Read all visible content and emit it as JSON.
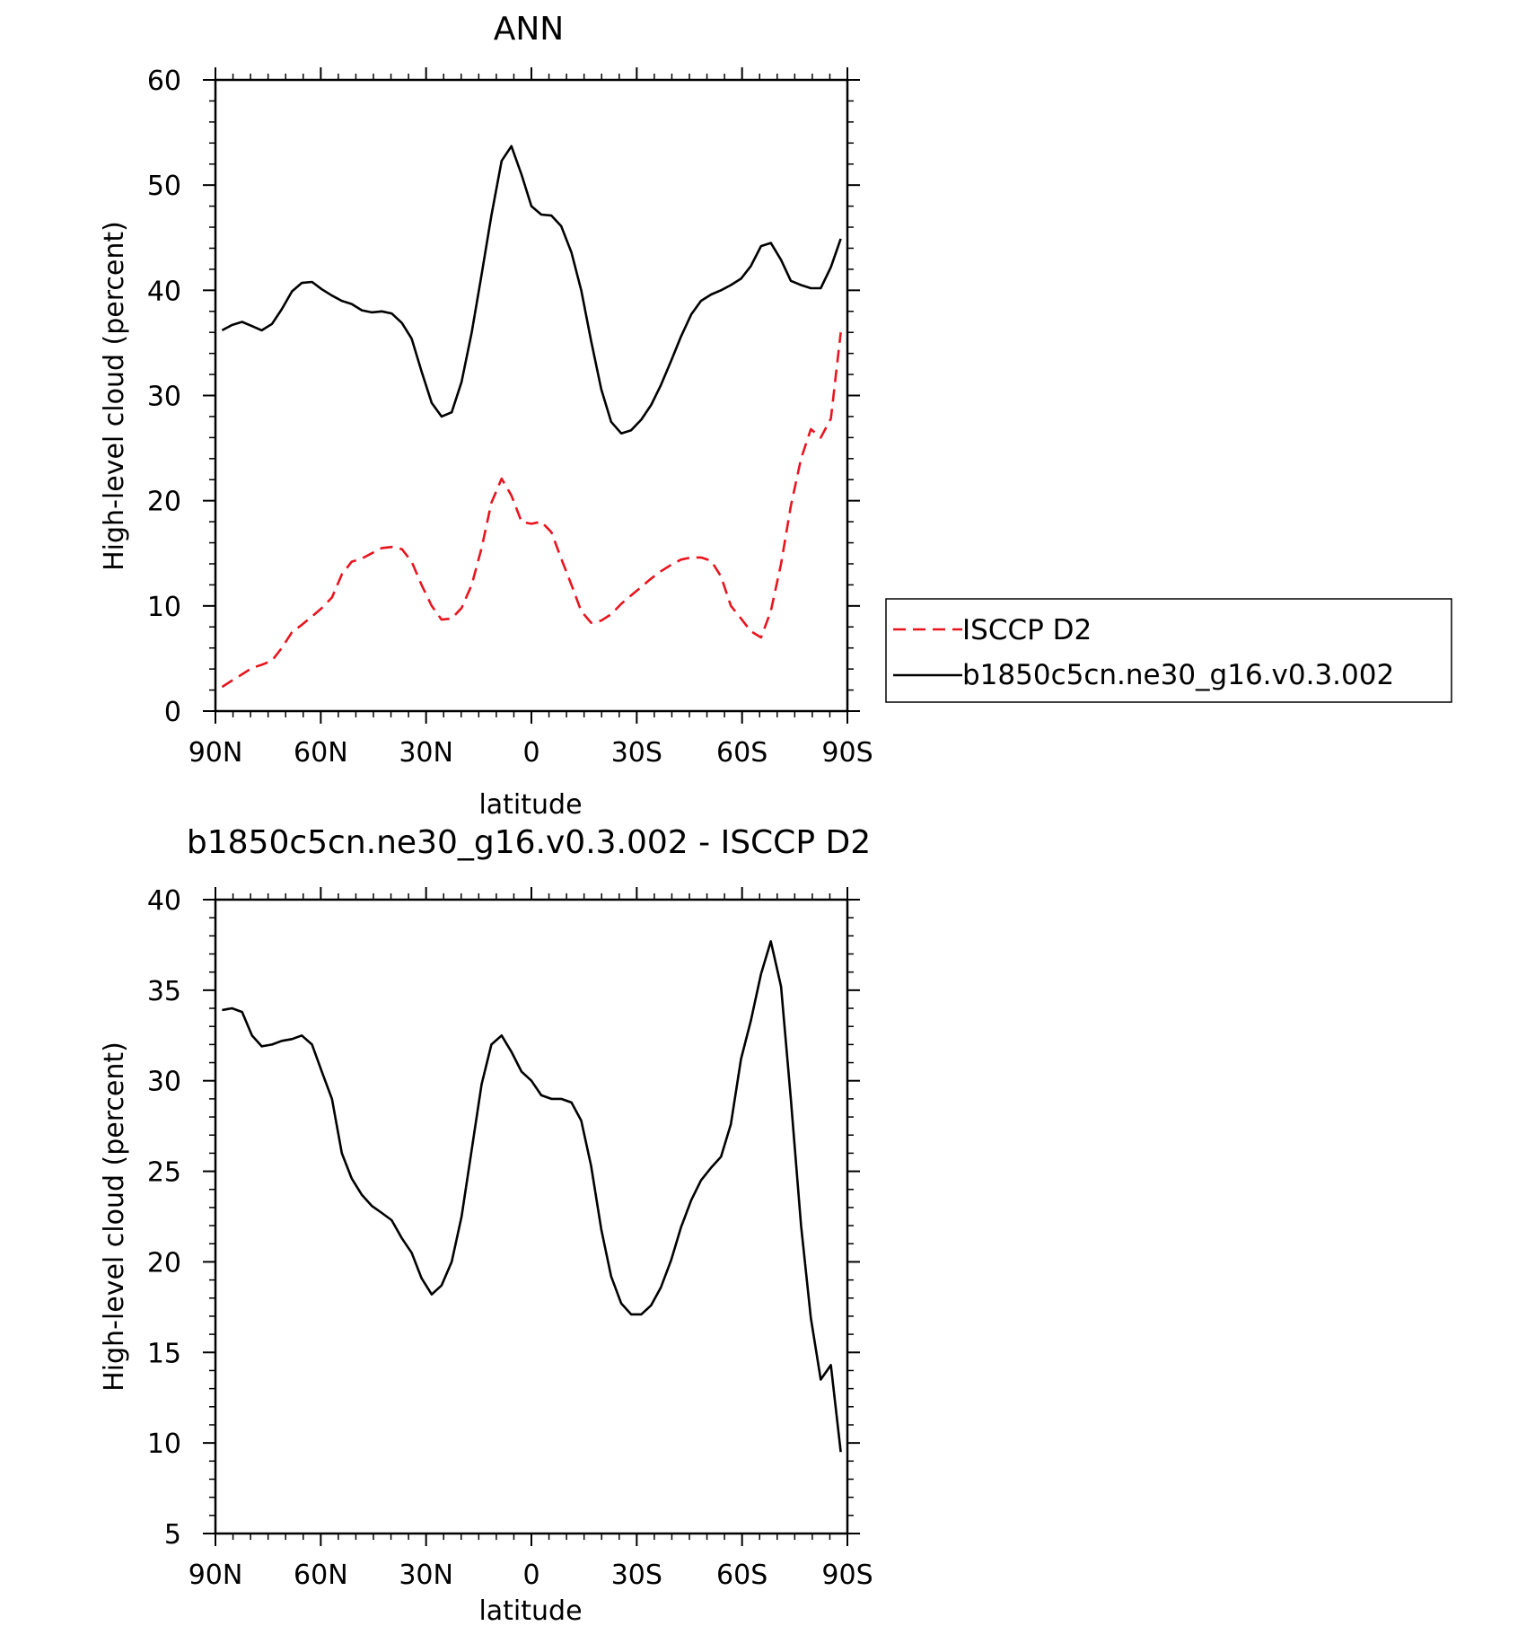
{
  "chart_data": [
    {
      "type": "line",
      "title": "ANN",
      "xlabel": "latitude",
      "ylabel": "High-level cloud (percent)",
      "xlim": [
        90,
        -90
      ],
      "ylim": [
        0,
        60
      ],
      "x_ticks": [
        {
          "value": 90,
          "label": "90N"
        },
        {
          "value": 60,
          "label": "60N"
        },
        {
          "value": 30,
          "label": "30N"
        },
        {
          "value": 0,
          "label": "0"
        },
        {
          "value": -30,
          "label": "30S"
        },
        {
          "value": -60,
          "label": "60S"
        },
        {
          "value": -90,
          "label": "90S"
        }
      ],
      "y_ticks": [
        0,
        10,
        20,
        30,
        40,
        50,
        60
      ],
      "legend": "right",
      "grid": false,
      "x": [
        88.1,
        85.3,
        82.4,
        79.6,
        76.8,
        73.9,
        71.1,
        68.2,
        65.4,
        62.5,
        59.7,
        56.8,
        54.0,
        51.2,
        48.3,
        45.5,
        42.6,
        39.8,
        36.9,
        34.1,
        31.3,
        28.4,
        25.6,
        22.7,
        19.9,
        17.0,
        14.2,
        11.4,
        8.5,
        5.7,
        2.8,
        0.0,
        -2.8,
        -5.7,
        -8.5,
        -11.4,
        -14.2,
        -17.0,
        -19.9,
        -22.7,
        -25.6,
        -28.4,
        -31.3,
        -34.1,
        -36.9,
        -39.8,
        -42.6,
        -45.5,
        -48.3,
        -51.2,
        -54.0,
        -56.8,
        -59.7,
        -62.5,
        -65.4,
        -68.2,
        -71.1,
        -73.9,
        -76.8,
        -79.6,
        -82.4,
        -85.3,
        -88.1
      ],
      "series": [
        {
          "name": "ISCCP D2",
          "color": "#e8141e",
          "dash": "dashed",
          "values": [
            2.3,
            2.9,
            3.5,
            4.1,
            4.4,
            4.8,
            6.0,
            7.5,
            8.2,
            9.0,
            9.8,
            10.8,
            13.0,
            14.2,
            14.5,
            15.0,
            15.5,
            15.6,
            15.4,
            14.2,
            12.0,
            10.0,
            8.7,
            8.8,
            9.8,
            12.0,
            15.5,
            19.8,
            22.1,
            20.5,
            18.0,
            17.8,
            18.0,
            17.0,
            14.5,
            12.0,
            9.5,
            8.4,
            8.6,
            9.2,
            10.2,
            11.0,
            11.8,
            12.6,
            13.3,
            13.9,
            14.4,
            14.6,
            14.6,
            14.3,
            12.8,
            10.0,
            8.8,
            7.6,
            7.0,
            9.5,
            14.0,
            19.5,
            24.0,
            26.8,
            26.0,
            27.8,
            36.0
          ]
        },
        {
          "name": "b1850c5cn.ne30_g16.v0.3.002",
          "color": "#000000",
          "dash": "solid",
          "values": [
            36.2,
            36.7,
            37.0,
            36.6,
            36.2,
            36.8,
            38.2,
            39.9,
            40.7,
            40.8,
            40.1,
            39.5,
            39.0,
            38.7,
            38.1,
            37.9,
            38.0,
            37.8,
            36.9,
            35.4,
            32.3,
            29.3,
            28.0,
            28.4,
            31.3,
            36.0,
            41.5,
            47.1,
            52.3,
            53.7,
            51.0,
            48.0,
            47.2,
            47.1,
            46.1,
            43.6,
            40.0,
            35.2,
            30.6,
            27.5,
            26.4,
            26.7,
            27.7,
            29.1,
            31.0,
            33.3,
            35.6,
            37.7,
            39.0,
            39.6,
            40.0,
            40.5,
            41.1,
            42.3,
            44.2,
            44.5,
            42.9,
            40.9,
            40.5,
            40.2,
            40.2,
            42.2,
            44.9
          ]
        }
      ]
    },
    {
      "type": "line",
      "title": "b1850c5cn.ne30_g16.v0.3.002 - ISCCP D2",
      "xlabel": "latitude",
      "ylabel": "High-level cloud (percent)",
      "xlim": [
        90,
        -90
      ],
      "ylim": [
        5,
        40
      ],
      "x_ticks": [
        {
          "value": 90,
          "label": "90N"
        },
        {
          "value": 60,
          "label": "60N"
        },
        {
          "value": 30,
          "label": "30N"
        },
        {
          "value": 0,
          "label": "0"
        },
        {
          "value": -30,
          "label": "30S"
        },
        {
          "value": -60,
          "label": "60S"
        },
        {
          "value": -90,
          "label": "90S"
        }
      ],
      "y_ticks": [
        5,
        10,
        15,
        20,
        25,
        30,
        35,
        40
      ],
      "grid": false,
      "x": [
        88.1,
        85.3,
        82.4,
        79.6,
        76.8,
        73.9,
        71.1,
        68.2,
        65.4,
        62.5,
        59.7,
        56.8,
        54.0,
        51.2,
        48.3,
        45.5,
        42.6,
        39.8,
        36.9,
        34.1,
        31.3,
        28.4,
        25.6,
        22.7,
        19.9,
        17.0,
        14.2,
        11.4,
        8.5,
        5.7,
        2.8,
        0.0,
        -2.8,
        -5.7,
        -8.5,
        -11.4,
        -14.2,
        -17.0,
        -19.9,
        -22.7,
        -25.6,
        -28.4,
        -31.3,
        -34.1,
        -36.9,
        -39.8,
        -42.6,
        -45.5,
        -48.3,
        -51.2,
        -54.0,
        -56.8,
        -59.7,
        -62.5,
        -65.4,
        -68.2,
        -71.1,
        -73.9,
        -76.8,
        -79.6,
        -82.4,
        -85.3,
        -88.1
      ],
      "series": [
        {
          "color": "#000000",
          "dash": "solid",
          "values": [
            33.9,
            34.0,
            33.8,
            32.5,
            31.9,
            32.0,
            32.2,
            32.3,
            32.5,
            32.0,
            30.5,
            29.0,
            26.0,
            24.6,
            23.7,
            23.1,
            22.7,
            22.3,
            21.3,
            20.5,
            19.1,
            18.2,
            18.7,
            20.0,
            22.5,
            26.2,
            29.8,
            32.0,
            32.5,
            31.6,
            30.5,
            30.0,
            29.2,
            29.0,
            29.0,
            28.8,
            27.8,
            25.3,
            21.8,
            19.2,
            17.7,
            17.1,
            17.1,
            17.6,
            18.6,
            20.1,
            21.9,
            23.4,
            24.5,
            25.2,
            25.8,
            27.6,
            31.2,
            33.3,
            35.9,
            37.7,
            35.2,
            29.0,
            22.0,
            16.9,
            13.5,
            14.3,
            9.5
          ]
        }
      ]
    }
  ]
}
